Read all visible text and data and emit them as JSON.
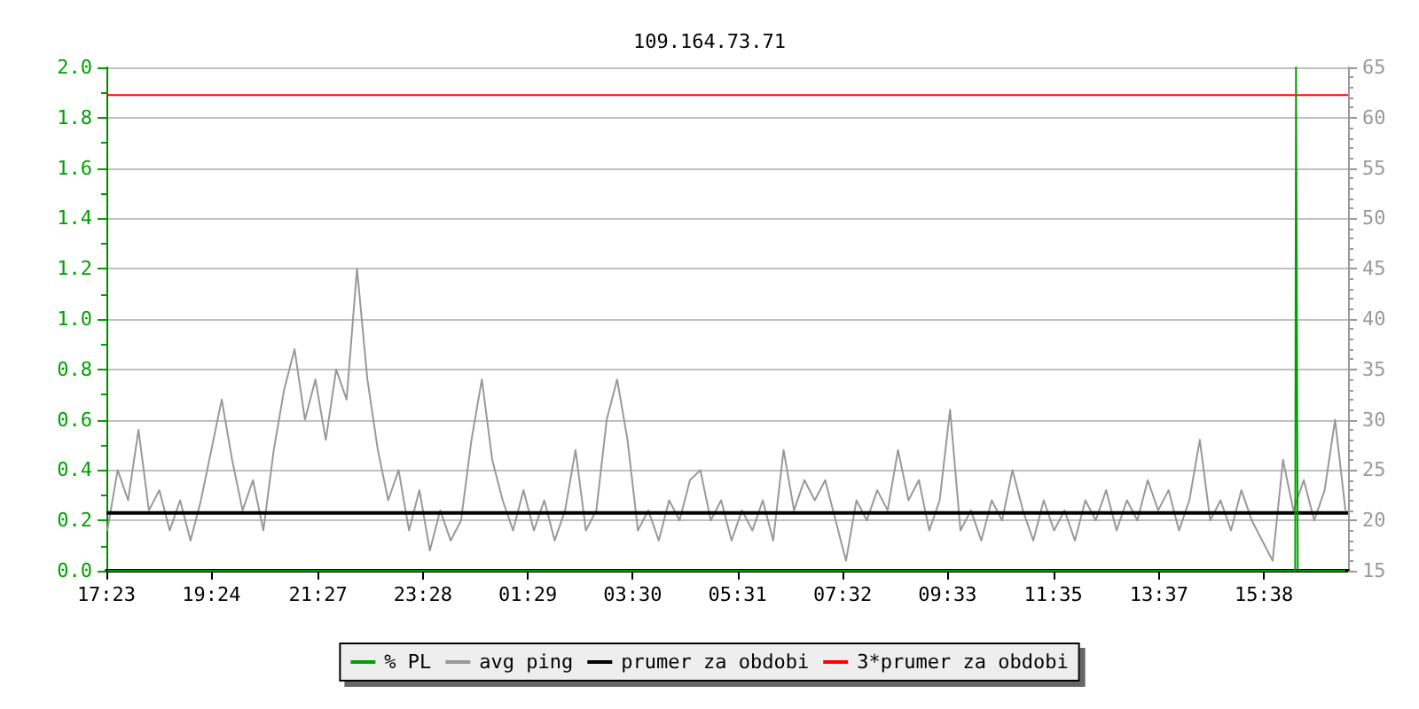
{
  "chart_data": {
    "type": "line",
    "title": "109.164.73.71",
    "x": [
      "--01-01T17:24",
      "--01-01T17:36",
      "--01-01T17:48",
      "--01-01T18:00",
      "--01-01T18:12",
      "--01-01T18:24",
      "--01-01T18:36",
      "--01-01T18:48",
      "--01-01T19:00",
      "--01-01T19:12",
      "--01-01T19:24",
      "--01-01T19:36",
      "--01-01T19:48",
      "--01-01T20:00",
      "--01-01T20:12",
      "--01-01T20:24",
      "--01-01T20:36",
      "--01-01T20:48",
      "--01-01T21:00",
      "--01-01T21:12",
      "--01-01T21:24",
      "--01-01T21:36",
      "--01-01T21:48",
      "--01-01T22:00",
      "--01-01T22:12",
      "--01-01T22:24",
      "--01-01T22:36",
      "--01-01T22:48",
      "--01-01T23:00",
      "--01-01T23:12",
      "--01-01T23:24",
      "--01-01T23:36",
      "--01-01T23:48",
      "--01-02T00:00",
      "--01-02T00:12",
      "--01-02T00:24",
      "--01-02T00:36",
      "--01-02T00:48",
      "--01-02T01:00",
      "--01-02T01:12",
      "--01-02T01:24",
      "--01-02T01:36",
      "--01-02T01:48",
      "--01-02T02:00",
      "--01-02T02:12",
      "--01-02T02:24",
      "--01-02T02:36",
      "--01-02T02:48",
      "--01-02T03:00",
      "--01-02T03:12",
      "--01-02T03:24",
      "--01-02T03:36",
      "--01-02T03:48",
      "--01-02T04:00",
      "--01-02T04:12",
      "--01-02T04:24",
      "--01-02T04:36",
      "--01-02T04:48",
      "--01-02T05:00",
      "--01-02T05:12",
      "--01-02T05:24",
      "--01-02T05:36",
      "--01-02T05:48",
      "--01-02T06:00",
      "--01-02T06:12",
      "--01-02T06:24",
      "--01-02T06:36",
      "--01-02T06:48",
      "--01-02T07:00",
      "--01-02T07:12",
      "--01-02T07:24",
      "--01-02T07:36",
      "--01-02T07:48",
      "--01-02T08:00",
      "--01-02T08:12",
      "--01-02T08:24",
      "--01-02T08:36",
      "--01-02T08:48",
      "--01-02T09:00",
      "--01-02T09:12",
      "--01-02T09:24",
      "--01-02T09:36",
      "--01-02T09:48",
      "--01-02T10:00",
      "--01-02T10:12",
      "--01-02T10:24",
      "--01-02T10:36",
      "--01-02T10:48",
      "--01-02T11:00",
      "--01-02T11:12",
      "--01-02T11:24",
      "--01-02T11:36",
      "--01-02T11:48",
      "--01-02T12:00",
      "--01-02T12:12",
      "--01-02T12:24",
      "--01-02T12:36",
      "--01-02T12:48",
      "--01-02T13:00",
      "--01-02T13:12",
      "--01-02T13:24",
      "--01-02T13:36",
      "--01-02T13:48",
      "--01-02T14:00",
      "--01-02T14:12",
      "--01-02T14:24",
      "--01-02T14:36",
      "--01-02T14:48",
      "--01-02T15:00",
      "--01-02T15:12",
      "--01-02T15:24",
      "--01-02T15:36",
      "--01-02T15:48",
      "--01-02T16:00",
      "--01-02T16:12",
      "--01-02T16:24",
      "--01-02T16:36",
      "--01-02T16:48",
      "--01-02T17:00",
      "--01-02T17:12"
    ],
    "series": [
      {
        "name": "% PL",
        "color": "#00a000",
        "x": [
          "--01-01T17:24",
          "--01-02T16:14",
          "--01-02T16:15",
          "--01-02T16:16",
          "--01-02T16:17",
          "--01-02T17:12"
        ],
        "values": [
          0,
          0,
          2.0,
          1.0,
          0,
          0
        ]
      },
      {
        "name": "avg ping",
        "color": "#999999",
        "axis": "y2",
        "values": [
          19,
          25,
          22,
          29,
          21,
          23,
          19,
          22,
          18,
          22,
          27,
          32,
          26,
          21,
          24,
          19,
          27,
          33,
          37,
          30,
          34,
          28,
          35,
          32,
          45,
          34,
          27,
          22,
          25,
          19,
          23,
          17,
          21,
          18,
          20,
          28,
          34,
          26,
          22,
          19,
          23,
          19,
          22,
          18,
          21,
          27,
          19,
          21,
          30,
          34,
          28,
          19,
          21,
          18,
          22,
          20,
          24,
          25,
          20,
          22,
          18,
          21,
          19,
          22,
          18,
          27,
          21,
          24,
          22,
          24,
          20,
          16,
          22,
          20,
          23,
          21,
          27,
          22,
          24,
          19,
          22,
          31,
          19,
          21,
          18,
          22,
          20,
          25,
          21,
          18,
          22,
          19,
          21,
          18,
          22,
          20,
          23,
          19,
          22,
          20,
          24,
          21,
          23,
          19,
          22,
          28,
          20,
          22,
          19,
          23,
          20,
          18,
          16,
          26,
          21,
          24,
          20,
          23,
          30,
          21
        ]
      }
    ],
    "ref_lines": [
      {
        "axis": "y2",
        "value": 20.75,
        "label": "prumer za obdobi",
        "color": "#000000"
      },
      {
        "axis": "y2",
        "value": 62.25,
        "label": "3*prumer za obdobi",
        "color": "#ff0000"
      }
    ],
    "xlim": [
      "--01-01T17:23",
      "--01-02T17:15"
    ],
    "xticks": [
      {
        "value": "--01-01T17:23",
        "label": "17:23"
      },
      {
        "value": "--01-01T19:24",
        "label": "19:24"
      },
      {
        "value": "--01-01T21:27",
        "label": "21:27"
      },
      {
        "value": "--01-01T23:28",
        "label": "23:28"
      },
      {
        "value": "--01-02T01:29",
        "label": "01:29"
      },
      {
        "value": "--01-02T03:30",
        "label": "03:30"
      },
      {
        "value": "--01-02T05:31",
        "label": "05:31"
      },
      {
        "value": "--01-02T07:32",
        "label": "07:32"
      },
      {
        "value": "--01-02T09:33",
        "label": "09:33"
      },
      {
        "value": "--01-02T11:35",
        "label": "11:35"
      },
      {
        "value": "--01-02T13:37",
        "label": "13:37"
      },
      {
        "value": "--01-02T15:38",
        "label": "15:38"
      }
    ],
    "ylim": [
      0,
      2.0
    ],
    "yticks": [
      {
        "value": 0,
        "label": "0.0"
      },
      0.2,
      0.4,
      0.6,
      0.8,
      {
        "value": 1,
        "label": "1.0"
      },
      1.2,
      1.4,
      1.6,
      1.8,
      {
        "value": 2,
        "label": "2.0"
      }
    ],
    "y2lim": [
      15,
      65
    ],
    "y2ticks": [
      15,
      20,
      25,
      30,
      35,
      40,
      45,
      50,
      55,
      60,
      65
    ],
    "grid": "y",
    "legend": "bottom",
    "marker": "none",
    "line_style": "solid"
  }
}
